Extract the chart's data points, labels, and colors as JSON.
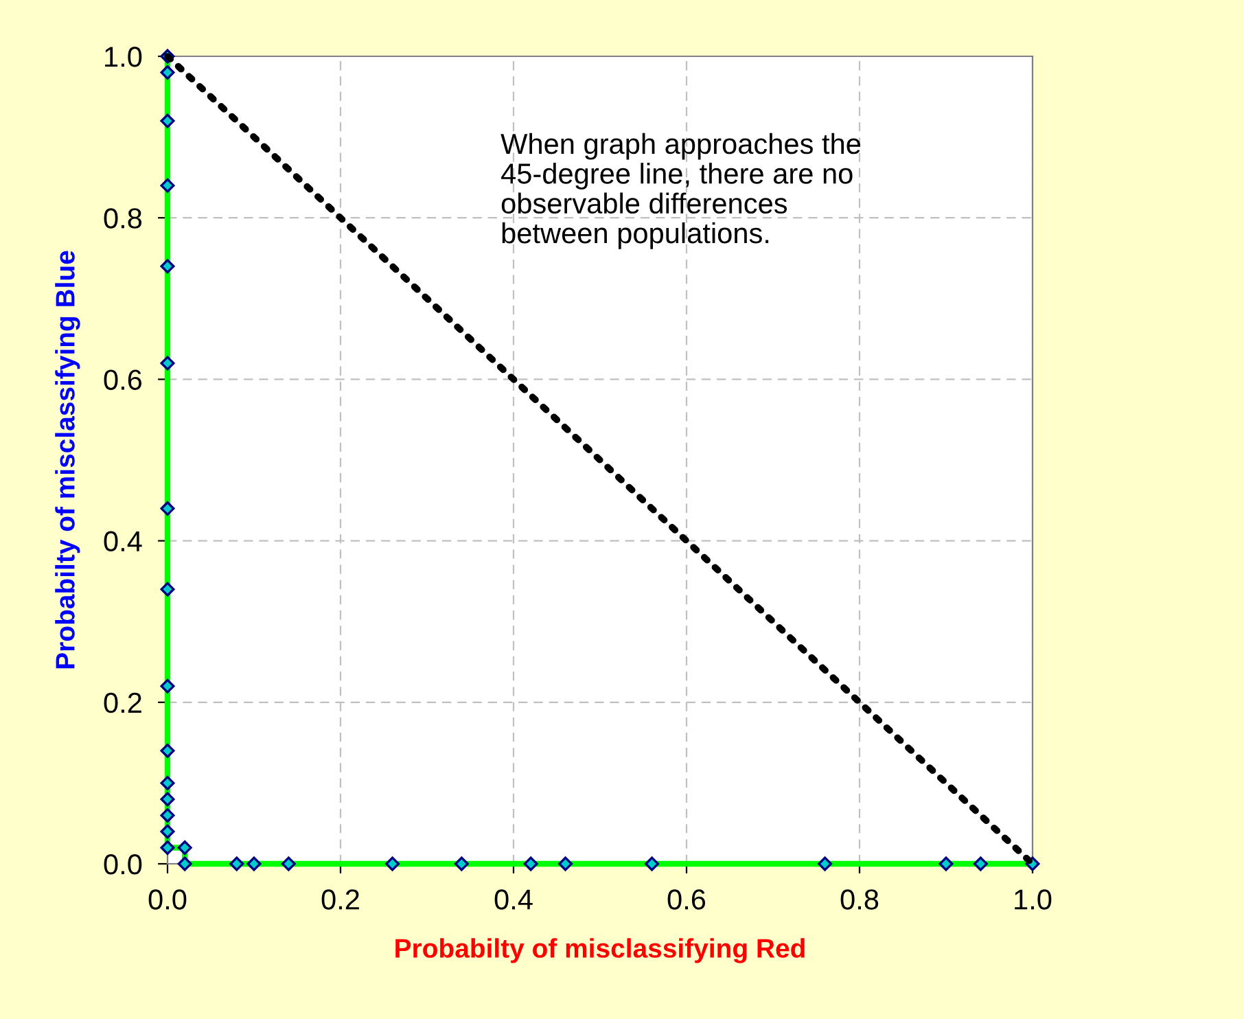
{
  "chart_data": {
    "type": "line",
    "xlabel": "Probabilty of misclassifying Red",
    "ylabel": "Probabilty of misclassifying Blue",
    "xlim": [
      0,
      1
    ],
    "ylim": [
      0,
      1
    ],
    "xticks": [
      {
        "value": 0,
        "label": "0.0"
      },
      {
        "value": 0.2,
        "label": "0.2"
      },
      {
        "value": 0.4,
        "label": "0.4"
      },
      {
        "value": 0.6,
        "label": "0.6"
      },
      {
        "value": 0.8,
        "label": "0.8"
      },
      {
        "value": 1,
        "label": "1.0"
      }
    ],
    "yticks": [
      {
        "value": 0,
        "label": "0.0"
      },
      {
        "value": 0.2,
        "label": "0.2"
      },
      {
        "value": 0.4,
        "label": "0.4"
      },
      {
        "value": 0.6,
        "label": "0.6"
      },
      {
        "value": 0.8,
        "label": "0.8"
      },
      {
        "value": 1,
        "label": "1.0"
      }
    ],
    "grid": true,
    "legend": false,
    "annotations": [
      "When graph approaches the\n45-degree line, there are no\nobservable differences\nbetween populations."
    ],
    "series": [
      {
        "color": "#00ff00",
        "marker": "diamond",
        "line_style": "solid",
        "x": [
          0,
          0,
          0,
          0,
          0,
          0,
          0,
          0,
          0,
          0,
          0,
          0,
          0,
          0,
          0,
          0.02,
          0.02,
          0.08,
          0.1,
          0.14,
          0.26,
          0.34,
          0.42,
          0.46,
          0.56,
          0.76,
          0.9,
          0.94,
          1.0
        ],
        "values": [
          1.0,
          0.98,
          0.92,
          0.84,
          0.74,
          0.62,
          0.44,
          0.34,
          0.22,
          0.14,
          0.1,
          0.08,
          0.06,
          0.04,
          0.02,
          0.02,
          0,
          0,
          0,
          0,
          0,
          0,
          0,
          0,
          0,
          0,
          0,
          0,
          0
        ]
      },
      {
        "color": "#000000",
        "marker": "none",
        "line_style": "dotted",
        "x": [
          0,
          1
        ],
        "values": [
          1,
          0
        ]
      }
    ]
  }
}
